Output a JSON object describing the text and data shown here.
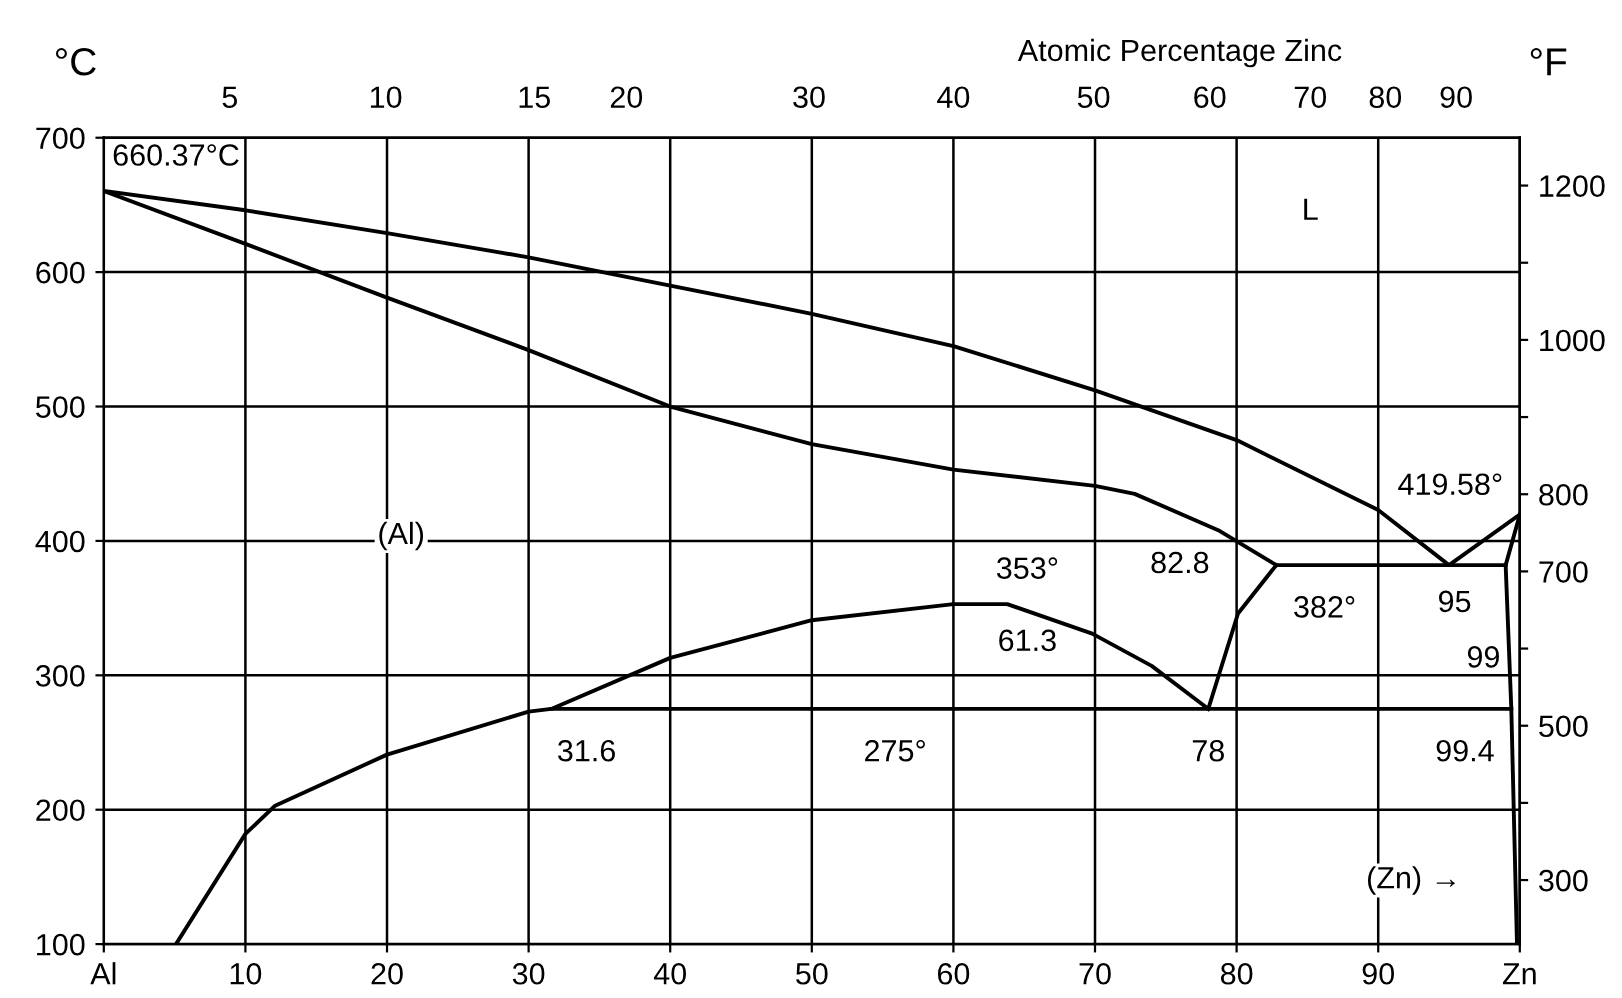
{
  "chart_data": {
    "type": "line",
    "xlabel": null,
    "ylabel": "°C",
    "y2label": "°F",
    "x2label": "Atomic Percentage Zinc",
    "xlim": [
      0,
      100
    ],
    "ylim": [
      100,
      700
    ],
    "xticks": [
      {
        "value": 0,
        "label": "Al"
      },
      10,
      20,
      30,
      40,
      50,
      60,
      70,
      80,
      90,
      {
        "value": 100,
        "label": "Zn"
      }
    ],
    "yticks": [
      100,
      200,
      300,
      400,
      500,
      600,
      700
    ],
    "y2lim": [
      217,
      1262
    ],
    "y2ticks": [
      300,
      {
        "value": 400,
        "label": null
      },
      500,
      {
        "value": 600,
        "label": null
      },
      700,
      800,
      {
        "value": 900,
        "label": null
      },
      1000,
      {
        "value": 1100,
        "label": null
      },
      1200
    ],
    "grid": true,
    "marker": "none",
    "line_style": "solid",
    "series": [
      {
        "color": "#000000",
        "x": [
          0,
          10,
          20,
          30,
          40,
          50,
          60,
          70,
          80,
          90,
          95,
          100
        ],
        "values": [
          660.37,
          646,
          629,
          611,
          590,
          569,
          545,
          512,
          475,
          423,
          382,
          419.58
        ]
      },
      {
        "color": "#000000",
        "x": [
          0,
          10,
          20,
          30,
          40,
          50,
          60,
          70,
          72.8,
          78.7,
          82.8
        ],
        "values": [
          660.37,
          621,
          581,
          542,
          500,
          472,
          453,
          441,
          435,
          408,
          382
        ]
      },
      {
        "color": "#000000",
        "x": [
          82.8,
          99
        ],
        "values": [
          382,
          382
        ]
      },
      {
        "color": "#000000",
        "x": [
          100,
          99,
          99.4,
          99.8
        ],
        "values": [
          419.58,
          382,
          275,
          100
        ]
      },
      {
        "color": "#000000",
        "x": [
          31.6,
          99.4
        ],
        "values": [
          275,
          275
        ]
      },
      {
        "color": "#000000",
        "x": [
          5.1,
          10,
          12.1,
          20,
          30,
          31.6,
          40,
          50,
          60,
          61.3,
          63.8,
          69.8,
          74,
          77.5,
          78
        ],
        "values": [
          100,
          182,
          203,
          241,
          273,
          275,
          313,
          341,
          353,
          353,
          353,
          331,
          307,
          279,
          275
        ]
      },
      {
        "color": "#000000",
        "x": [
          78,
          80.1,
          82.8
        ],
        "values": [
          275,
          346,
          382
        ]
      }
    ],
    "annotations": [
      {
        "text": "660.37°C",
        "x": 0,
        "y": 660.37
      },
      {
        "text": "419.58°",
        "x": 100,
        "y": 419.58
      },
      {
        "text": "353°",
        "x": 61.3,
        "y": 353
      },
      {
        "text": "61.3",
        "x": 61.3,
        "y": 353
      },
      {
        "text": "82.8",
        "x": 82.8,
        "y": 382
      },
      {
        "text": "382°",
        "x": 82.8,
        "y": 382
      },
      {
        "text": "95",
        "x": 95,
        "y": 382
      },
      {
        "text": "99",
        "x": 99,
        "y": 382
      },
      {
        "text": "31.6",
        "x": 31.6,
        "y": 275
      },
      {
        "text": "275°",
        "x": 50,
        "y": 275
      },
      {
        "text": "78",
        "x": 78,
        "y": 275
      },
      {
        "text": "99.4",
        "x": 99.4,
        "y": 275
      },
      "(Al)",
      "L",
      "(Zn) →",
      "5",
      "10",
      "15",
      "20",
      "30",
      "40",
      "50",
      "60",
      "70",
      "80",
      "90"
    ]
  }
}
